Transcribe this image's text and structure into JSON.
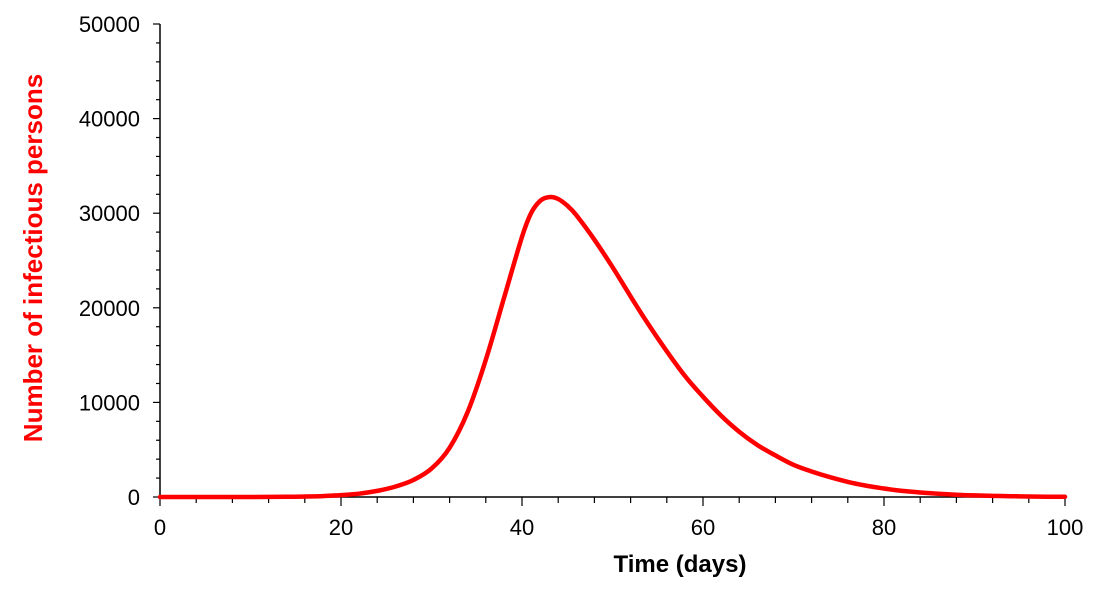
{
  "chart_data": {
    "type": "line",
    "title": "",
    "xlabel": "Time (days)",
    "ylabel": "Number of infectious persons",
    "xlim": [
      0,
      100
    ],
    "ylim": [
      0,
      50000
    ],
    "grid": false,
    "legend": "none",
    "x_ticks": [
      "0",
      "20",
      "40",
      "60",
      "80",
      "100"
    ],
    "y_ticks": [
      "0",
      "10000",
      "20000",
      "30000",
      "40000",
      "50000"
    ],
    "colors": {
      "series": "#ff0000",
      "ylabel": "#ff0000",
      "axis": "#000000"
    },
    "series": [
      {
        "x": [
          0,
          5,
          10,
          14,
          16,
          18,
          20,
          22,
          24,
          26,
          28,
          30,
          32,
          34,
          36,
          38,
          40,
          41,
          42,
          43,
          44,
          45,
          46,
          48,
          50,
          52,
          54,
          56,
          58,
          60,
          62,
          64,
          66,
          68,
          70,
          72,
          74,
          76,
          78,
          80,
          82,
          84,
          86,
          88,
          90,
          92,
          94,
          96,
          98,
          100
        ],
        "values": [
          0,
          0,
          0,
          20,
          50,
          100,
          200,
          350,
          650,
          1100,
          1800,
          3000,
          5200,
          9000,
          14500,
          21000,
          27500,
          30000,
          31300,
          31700,
          31500,
          30800,
          29800,
          27200,
          24300,
          21200,
          18200,
          15400,
          12800,
          10600,
          8600,
          6900,
          5500,
          4400,
          3400,
          2700,
          2100,
          1600,
          1200,
          900,
          650,
          480,
          340,
          240,
          170,
          120,
          80,
          55,
          35,
          20
        ]
      }
    ]
  }
}
